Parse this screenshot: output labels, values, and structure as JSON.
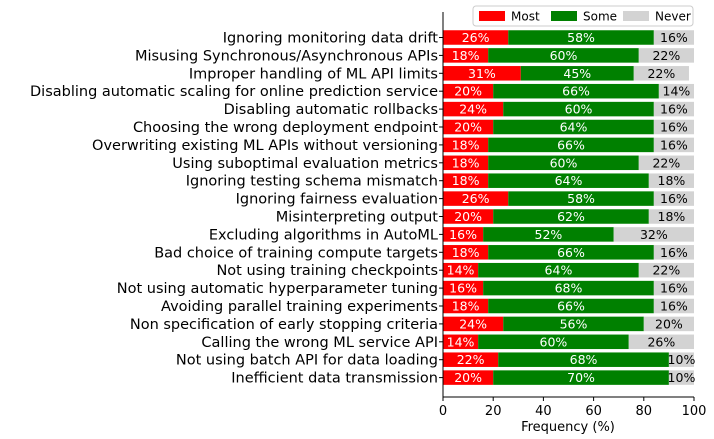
{
  "chart_data": {
    "type": "bar",
    "orientation": "horizontal",
    "stacked": true,
    "xlabel": "Frequency (%)",
    "ylabel": "",
    "xlim": [
      0,
      100
    ],
    "xticks": [
      0,
      20,
      40,
      60,
      80,
      100
    ],
    "grid": false,
    "legend_position": "top-right",
    "categories": [
      "Ignoring monitoring data drift",
      "Misusing Synchronous/Asynchronous APIs",
      "Improper handling of ML API limits",
      "Disabling automatic scaling for online prediction service",
      "Disabling automatic rollbacks",
      "Choosing the wrong deployment endpoint",
      "Overwriting existing ML APIs without versioning",
      "Using suboptimal evaluation metrics",
      "Ignoring testing schema mismatch",
      "Ignoring fairness evaluation",
      "Misinterpreting output",
      "Excluding algorithms in AutoML",
      "Bad choice of training compute targets",
      "Not using training checkpoints",
      "Not using automatic hyperparameter tuning",
      "Avoiding parallel training experiments",
      "Non specification of early stopping criteria",
      "Calling the wrong ML service API",
      "Not using batch API for data loading",
      "Inefficient data transmission"
    ],
    "series": [
      {
        "name": "Most",
        "color": "#ff0000",
        "label_color": "#ffffff",
        "values": [
          26,
          18,
          31,
          20,
          24,
          20,
          18,
          18,
          18,
          26,
          20,
          16,
          18,
          14,
          16,
          18,
          24,
          14,
          22,
          20
        ]
      },
      {
        "name": "Some",
        "color": "#008000",
        "label_color": "#ffffff",
        "values": [
          58,
          60,
          45,
          66,
          60,
          64,
          66,
          60,
          64,
          58,
          62,
          52,
          66,
          64,
          68,
          66,
          56,
          60,
          68,
          70
        ]
      },
      {
        "name": "Never",
        "color": "#d3d3d3",
        "label_color": "#000000",
        "values": [
          16,
          22,
          22,
          14,
          16,
          16,
          16,
          22,
          18,
          16,
          18,
          32,
          16,
          22,
          16,
          16,
          20,
          26,
          10,
          10
        ]
      }
    ],
    "value_suffix": "%"
  }
}
